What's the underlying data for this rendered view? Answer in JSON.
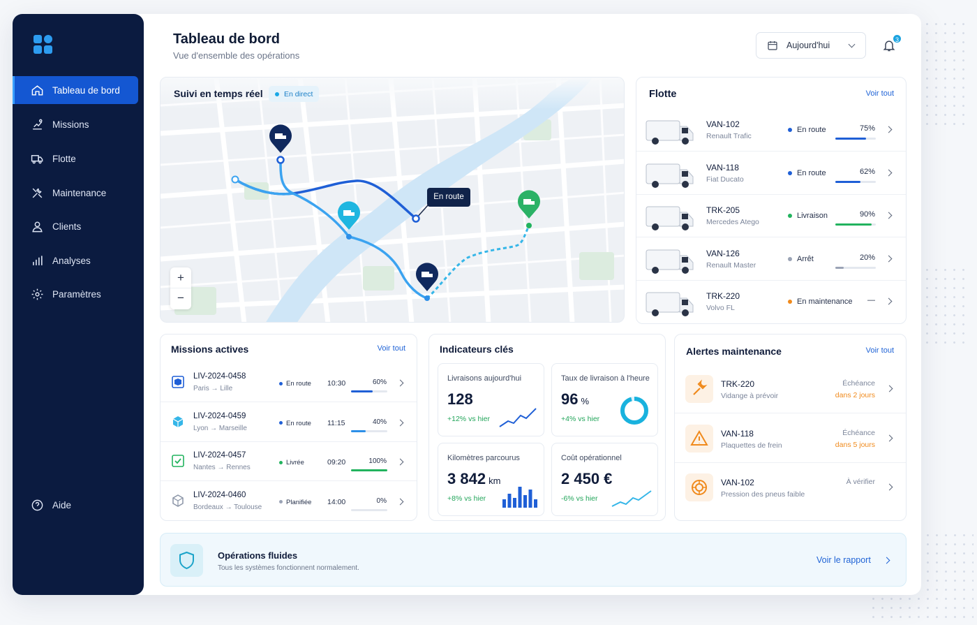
{
  "header": {
    "title": "Tableau de bord",
    "subtitle": "Vue d'ensemble des opérations",
    "date_label": "Aujourd'hui",
    "notif_count": "3"
  },
  "sidebar": {
    "items": [
      {
        "label": "Tableau de bord",
        "icon": "home-icon"
      },
      {
        "label": "Missions",
        "icon": "route-icon"
      },
      {
        "label": "Flotte",
        "icon": "truck-icon"
      },
      {
        "label": "Maintenance",
        "icon": "wrench-icon"
      },
      {
        "label": "Clients",
        "icon": "user-icon"
      },
      {
        "label": "Analyses",
        "icon": "bar-chart-icon"
      },
      {
        "label": "Paramètres",
        "icon": "gear-icon"
      }
    ],
    "help": "Aide"
  },
  "map": {
    "title": "Suivi en temps réel",
    "live": "En direct",
    "tooltip": "En route",
    "zoom_in": "+",
    "zoom_out": "−"
  },
  "fleet": {
    "title": "Flotte",
    "see_all": "Voir tout",
    "items": [
      {
        "id": "VAN-102",
        "model": "Renault Trafic",
        "status": "En route",
        "status_color": "#1f5fd6",
        "pct": "75%",
        "fill": 0.75,
        "bar_color": "#1f5fd6"
      },
      {
        "id": "VAN-118",
        "model": "Fiat Ducato",
        "status": "En route",
        "status_color": "#1f5fd6",
        "pct": "62%",
        "fill": 0.62,
        "bar_color": "#1f5fd6"
      },
      {
        "id": "TRK-205",
        "model": "Mercedes Atego",
        "status": "Livraison",
        "status_color": "#22b35e",
        "pct": "90%",
        "fill": 0.9,
        "bar_color": "#22b35e"
      },
      {
        "id": "VAN-126",
        "model": "Renault Master",
        "status": "Arrêt",
        "status_color": "#9aa3b5",
        "pct": "20%",
        "fill": 0.2,
        "bar_color": "#9aa3b5"
      },
      {
        "id": "TRK-220",
        "model": "Volvo FL",
        "status": "En maintenance",
        "status_color": "#f08a1c",
        "pct": "—",
        "fill": 0,
        "bar_color": "#9aa3b5"
      }
    ]
  },
  "missions": {
    "title": "Missions actives",
    "see_all": "Voir tout",
    "items": [
      {
        "id": "LIV-2024-0458",
        "route": "Paris → Lille",
        "status": "En route",
        "status_color": "#1f5fd6",
        "time": "10:30",
        "pct": "60%",
        "fill": 0.6,
        "bar_color": "#1f5fd6"
      },
      {
        "id": "LIV-2024-0459",
        "route": "Lyon → Marseille",
        "status": "En route",
        "status_color": "#1f5fd6",
        "time": "11:15",
        "pct": "40%",
        "fill": 0.4,
        "bar_color": "#2d8fe8"
      },
      {
        "id": "LIV-2024-0457",
        "route": "Nantes → Rennes",
        "status": "Livrée",
        "status_color": "#22b35e",
        "time": "09:20",
        "pct": "100%",
        "fill": 1.0,
        "bar_color": "#22b35e"
      },
      {
        "id": "LIV-2024-0460",
        "route": "Bordeaux → Toulouse",
        "status": "Planifiée",
        "status_color": "#9aa3b5",
        "time": "14:00",
        "pct": "0%",
        "fill": 0,
        "bar_color": "#9aa3b5"
      }
    ]
  },
  "kpis": {
    "title": "Indicateurs clés",
    "items": [
      {
        "label": "Livraisons aujourd'hui",
        "value": "128",
        "unit": "",
        "delta": "+12% vs hier",
        "delta_color": "#22a55a"
      },
      {
        "label": "Taux de livraison à l'heure",
        "value": "96",
        "unit": "%",
        "delta": "+4% vs hier",
        "delta_color": "#22a55a",
        "ring": 0.96
      },
      {
        "label": "Kilomètres parcourus",
        "value": "3 842",
        "unit": "km",
        "delta": "+8% vs hier",
        "delta_color": "#22a55a"
      },
      {
        "label": "Coût opérationnel",
        "value": "2 450 €",
        "unit": "",
        "delta": "-6% vs hier",
        "delta_color": "#22a55a"
      }
    ]
  },
  "alerts": {
    "title": "Alertes maintenance",
    "see_all": "Voir tout",
    "items": [
      {
        "id": "TRK-220",
        "desc": "Vidange à prévoir",
        "label": "Échéance",
        "due": "dans 2 jours",
        "icon": "wrench-icon"
      },
      {
        "id": "VAN-118",
        "desc": "Plaquettes de frein",
        "label": "Échéance",
        "due": "dans 5 jours",
        "icon": "warning-icon"
      },
      {
        "id": "VAN-102",
        "desc": "Pression des pneus faible",
        "label": "À vérifier",
        "due": "",
        "icon": "tire-icon"
      }
    ]
  },
  "banner": {
    "title": "Opérations fluides",
    "text": "Tous les systèmes fonctionnent normalement.",
    "link": "Voir le rapport"
  }
}
